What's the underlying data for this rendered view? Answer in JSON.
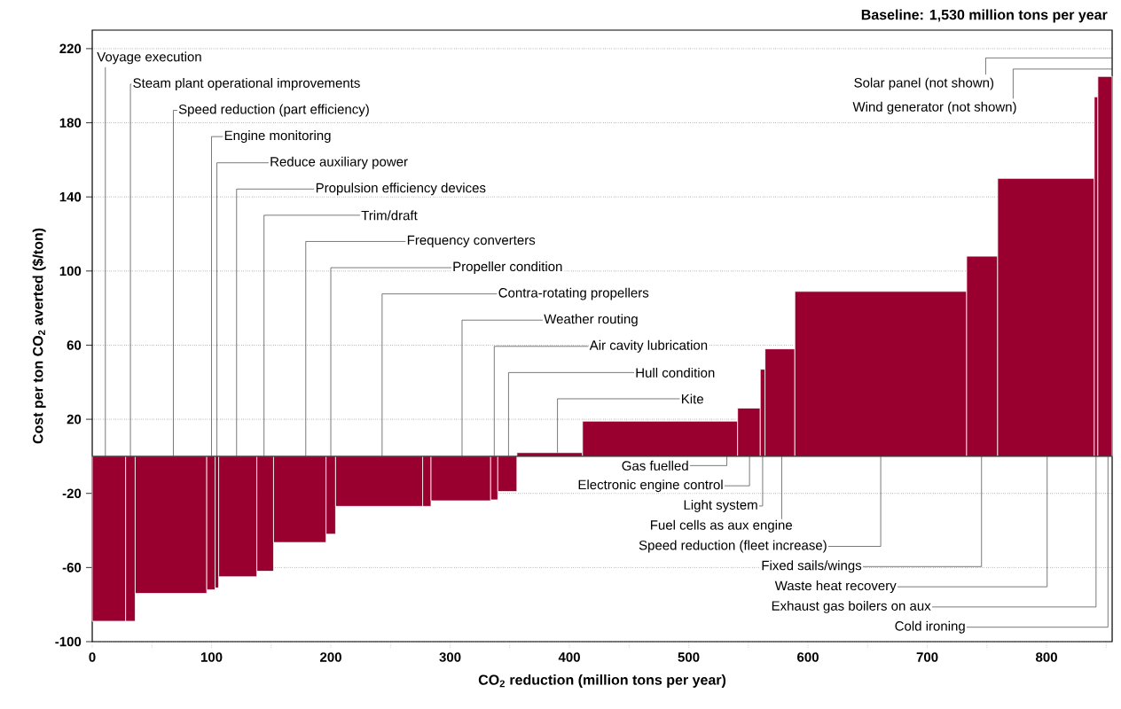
{
  "chart_data": {
    "type": "histogram",
    "title": "Baseline: 1,530 million tons per year",
    "xlabel": "CO$_{2}$ reduction (million tons per year)",
    "ylabel": "Cost per ton CO$_{2}$ averted ($/ton)",
    "bins": [
      0,
      28,
      36,
      96,
      103,
      106,
      138,
      152,
      196,
      204,
      277,
      284,
      334,
      340,
      356,
      411,
      541,
      560,
      564,
      589,
      733,
      759,
      840,
      843,
      855
    ],
    "values": [
      -89,
      -89,
      -74,
      -72,
      -71,
      -65,
      -62,
      -46.5,
      -42,
      -27,
      -27,
      -24,
      -23.5,
      -19,
      2,
      19,
      26,
      47,
      58,
      89,
      108,
      150,
      194,
      205
    ],
    "color": "#990030",
    "xlim": [
      0,
      855
    ],
    "ylim": [
      -100,
      230
    ],
    "xticks": [
      0,
      {
        "value": 50,
        "label": null
      },
      100,
      {
        "value": 150,
        "label": null
      },
      200,
      {
        "value": 250,
        "label": null
      },
      300,
      {
        "value": 350,
        "label": null
      },
      400,
      {
        "value": 450,
        "label": null
      },
      500,
      {
        "value": 550,
        "label": null
      },
      600,
      {
        "value": 650,
        "label": null
      },
      700,
      {
        "value": 750,
        "label": null
      },
      800,
      {
        "value": 850,
        "label": null
      }
    ],
    "yticks": [
      -100,
      -60,
      -20,
      20,
      60,
      100,
      140,
      180,
      220
    ],
    "grid": "y",
    "ref_lines": [
      {
        "axis": "y",
        "value": 0
      }
    ],
    "annotations": [
      {
        "text": "Voyage execution",
        "x": 11,
        "y": 0
      },
      {
        "text": "Steam plant operational improvements",
        "x": 32,
        "y": 0
      },
      {
        "text": "Speed reduction (part efficiency)",
        "x": 68,
        "y": 0
      },
      {
        "text": "Engine monitoring",
        "x": 100,
        "y": 0
      },
      {
        "text": "Reduce auxiliary power",
        "x": 104.5,
        "y": 0
      },
      {
        "text": "Propulsion efficiency devices",
        "x": 121,
        "y": 0
      },
      {
        "text": "Trim/draft",
        "x": 144,
        "y": 0
      },
      {
        "text": "Frequency converters",
        "x": 179,
        "y": 0
      },
      {
        "text": "Propeller condition",
        "x": 200,
        "y": 0
      },
      {
        "text": "Contra-rotating propellers",
        "x": 243,
        "y": 0
      },
      {
        "text": "Weather routing",
        "x": 310,
        "y": 0
      },
      {
        "text": "Air cavity lubrication",
        "x": 337,
        "y": 0
      },
      {
        "text": "Hull condition",
        "x": 349,
        "y": 0
      },
      {
        "text": "Kite",
        "x": 390,
        "y": 2
      },
      {
        "text": "Gas fuelled",
        "x": 532,
        "y": 0
      },
      {
        "text": "Electronic engine control",
        "x": 551,
        "y": 0
      },
      {
        "text": "Light system",
        "x": 562,
        "y": 0
      },
      {
        "text": "Fuel cells as aux engine",
        "x": 578,
        "y": 0
      },
      {
        "text": "Speed reduction (fleet increase)",
        "x": 661,
        "y": 0
      },
      {
        "text": "Fixed sails/wings",
        "x": 745.5,
        "y": 0
      },
      {
        "text": "Waste heat recovery",
        "x": 800.5,
        "y": 0
      },
      {
        "text": "Exhaust gas boilers on aux",
        "x": 841.5,
        "y": 0
      },
      {
        "text": "Cold ironing",
        "x": 851.5,
        "y": 0
      },
      "Solar panel (not shown)",
      "Wind generator (not shown)"
    ]
  }
}
